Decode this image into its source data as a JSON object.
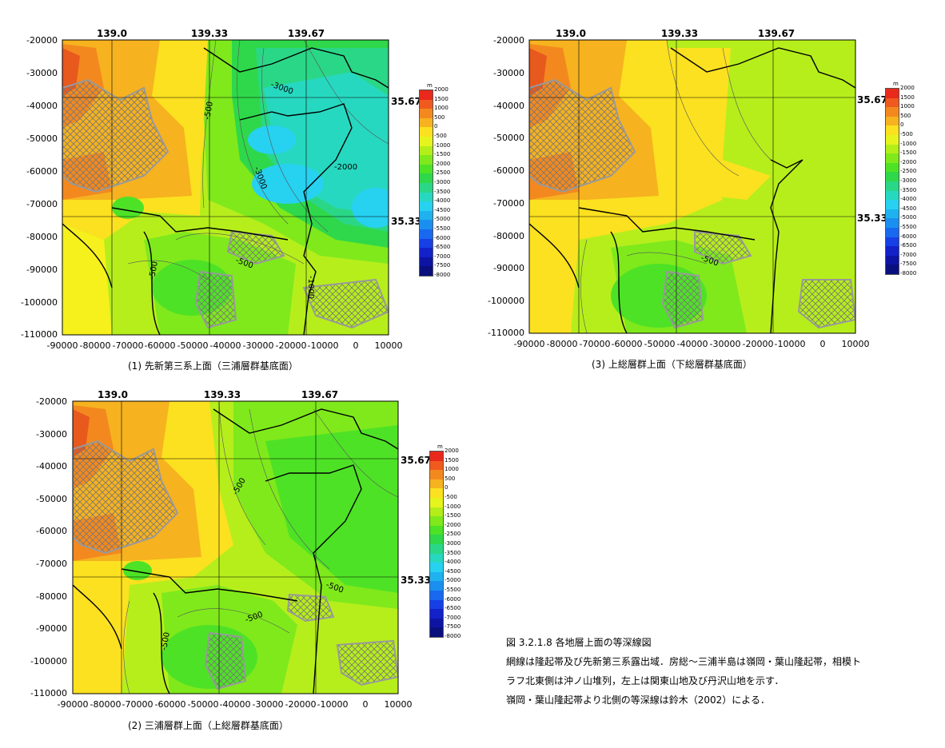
{
  "panels": [
    {
      "caption": "(1)  先新第三系上面（三浦層群基底面）",
      "contour_labels": [
        "-3000",
        "-3000",
        "-500",
        "-500",
        "-2000",
        "-500",
        "-1000"
      ]
    },
    {
      "caption": "(3)  上総層群上面（下総層群基底面）",
      "contour_labels": [
        "-500"
      ]
    },
    {
      "caption": "(2)  三浦層群上面（上総層群基底面）",
      "contour_labels": [
        "-500",
        "-500",
        "-500",
        "-500"
      ]
    }
  ],
  "axes": {
    "y_ticks": [
      "-20000",
      "-30000",
      "-40000",
      "-50000",
      "-60000",
      "-70000",
      "-80000",
      "-90000",
      "-100000",
      "-110000"
    ],
    "x_ticks": [
      "-90000",
      "-80000",
      "-70000",
      "-60000",
      "-50000",
      "-40000",
      "-30000",
      "-20000",
      "-10000",
      "0",
      "10000"
    ],
    "top_labels": [
      "139.0",
      "139.33",
      "139.67"
    ],
    "right_labels": [
      "35.67",
      "35.33"
    ]
  },
  "colorbar": {
    "unit": "m",
    "ticks": [
      "2000",
      "1500",
      "1000",
      "500",
      "0",
      "-500",
      "-1000",
      "-1500",
      "-2000",
      "-2500",
      "-3000",
      "-3500",
      "-4000",
      "-4500",
      "-5000",
      "-5500",
      "-6000",
      "-6500",
      "-7000",
      "-7500",
      "-8000"
    ],
    "colors": [
      "#e8291c",
      "#f05a1e",
      "#f3891e",
      "#f6b21f",
      "#fbe11f",
      "#e6f41d",
      "#b4ee19",
      "#7fe91c",
      "#4ee226",
      "#2fd84a",
      "#2ad787",
      "#27d8c0",
      "#27d1f0",
      "#1fb2ef",
      "#1b8ff0",
      "#1869ef",
      "#163fe6",
      "#1221c8",
      "#0d14a4",
      "#0a0f7e"
    ]
  },
  "figure_caption": {
    "title": "図 3.2.1.8  各地層上面の等深線図",
    "line1": "網線は隆起帯及び先新第三系露出域．房総～三浦半島は嶺岡・葉山隆起帯，相模ト",
    "line2": "ラフ北東側は沖ノ山堆列，左上は関東山地及び丹沢山地を示す．",
    "line3": "嶺岡・葉山隆起帯より北側の等深線は鈴木（2002）による．"
  }
}
